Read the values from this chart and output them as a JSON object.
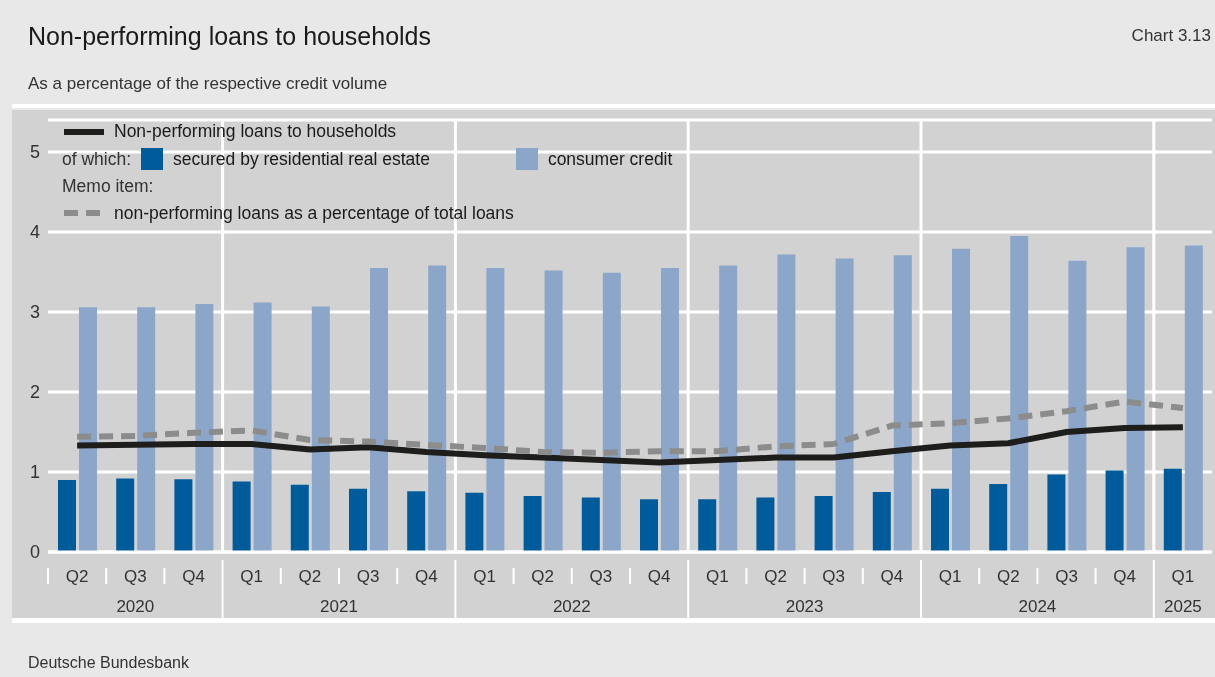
{
  "chart_data": {
    "type": "bar",
    "title": "Non-performing loans to households",
    "subtitle": "As a percentage of the respective credit volume",
    "annotations": [
      "Chart 3.13",
      "of which:",
      "Memo item:",
      "Deutsche Bundesbank",
      "2020",
      "2021",
      "2022",
      "2023",
      "2024",
      "2025"
    ],
    "categories": [
      "Q2",
      "Q3",
      "Q4",
      "Q1",
      "Q2",
      "Q3",
      "Q4",
      "Q1",
      "Q2",
      "Q3",
      "Q4",
      "Q1",
      "Q2",
      "Q3",
      "Q4",
      "Q1",
      "Q2",
      "Q3",
      "Q4",
      "Q1"
    ],
    "series": [
      {
        "name": "secured by residential real estate",
        "color": "#005b9a",
        "values": [
          0.9,
          0.92,
          0.91,
          0.88,
          0.84,
          0.79,
          0.76,
          0.74,
          0.7,
          0.68,
          0.66,
          0.66,
          0.68,
          0.7,
          0.75,
          0.79,
          0.85,
          0.97,
          1.02,
          1.04
        ]
      },
      {
        "name": "consumer credit",
        "color": "#8ca6ca",
        "values": [
          3.06,
          3.06,
          3.1,
          3.12,
          3.07,
          3.55,
          3.58,
          3.55,
          3.52,
          3.49,
          3.55,
          3.58,
          3.72,
          3.67,
          3.71,
          3.79,
          3.95,
          3.64,
          3.81,
          3.83
        ]
      },
      {
        "name": "Non-performing loans to households",
        "type": "line",
        "color": "#1d1d1b",
        "line_style": "solid",
        "values": [
          1.33,
          1.34,
          1.35,
          1.35,
          1.28,
          1.31,
          1.25,
          1.21,
          1.18,
          1.15,
          1.12,
          1.15,
          1.18,
          1.18,
          1.26,
          1.33,
          1.36,
          1.5,
          1.55,
          1.56
        ]
      },
      {
        "name": "non-performing loans as a percentage of total loans",
        "type": "line",
        "color": "#8c8c8c",
        "line_style": "dashed",
        "values": [
          1.44,
          1.45,
          1.49,
          1.52,
          1.4,
          1.38,
          1.34,
          1.3,
          1.25,
          1.24,
          1.26,
          1.26,
          1.32,
          1.35,
          1.58,
          1.61,
          1.67,
          1.76,
          1.88,
          1.8
        ]
      }
    ],
    "ylim": [
      0,
      5.4
    ],
    "yticks": [
      0,
      1,
      2,
      3,
      4,
      5
    ],
    "grid": true,
    "legend": "top left",
    "marker": "none"
  }
}
